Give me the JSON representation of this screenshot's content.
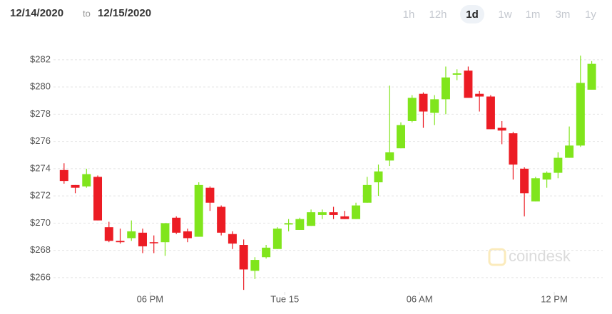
{
  "header": {
    "start_date": "12/14/2020",
    "separator": "to",
    "end_date": "12/15/2020",
    "ranges": [
      "1h",
      "12h",
      "1d",
      "1w",
      "1m",
      "3m",
      "1y"
    ],
    "selected_range": "1d"
  },
  "chart_data": {
    "type": "candlestick",
    "watermark": "coindesk",
    "x": [
      14.17,
      14.67,
      15.17,
      15.67,
      16.17,
      16.67,
      17.17,
      17.67,
      18.17,
      18.67,
      19.17,
      19.67,
      20.17,
      20.67,
      21.17,
      21.67,
      22.17,
      22.67,
      23.17,
      23.67,
      24.17,
      24.67,
      25.17,
      25.67,
      26.17,
      26.67,
      27.17,
      27.67,
      28.17,
      28.67,
      29.17,
      29.67,
      30.17,
      30.67,
      31.17,
      31.67,
      32.17,
      32.67,
      33.17,
      33.67,
      34.17,
      34.67,
      35.17,
      35.67,
      36.17,
      36.67,
      37.17,
      37.67
    ],
    "open": [
      273.9,
      272.8,
      272.7,
      273.4,
      269.7,
      268.7,
      268.9,
      269.3,
      268.6,
      268.6,
      270.4,
      269.4,
      269.0,
      272.6,
      271.2,
      269.2,
      268.4,
      266.5,
      267.5,
      268.1,
      269.9,
      269.5,
      269.8,
      270.6,
      270.8,
      270.5,
      270.3,
      271.5,
      273.0,
      274.6,
      275.5,
      277.5,
      279.5,
      278.1,
      279.1,
      280.9,
      281.2,
      279.5,
      279.3,
      277.0,
      276.6,
      274.0,
      271.6,
      273.2,
      273.7,
      274.8,
      275.7,
      279.8
    ],
    "high": [
      274.4,
      272.8,
      274.0,
      273.5,
      270.1,
      269.6,
      270.2,
      269.6,
      269.1,
      270.0,
      270.5,
      269.6,
      273.0,
      272.7,
      271.3,
      269.4,
      268.8,
      267.5,
      268.4,
      269.7,
      270.3,
      270.4,
      271.0,
      271.0,
      271.2,
      270.9,
      271.5,
      273.4,
      274.3,
      280.1,
      277.4,
      279.4,
      279.6,
      279.4,
      281.5,
      281.3,
      281.5,
      279.7,
      279.4,
      277.5,
      276.7,
      274.1,
      273.4,
      273.8,
      275.2,
      277.1,
      282.3,
      281.9
    ],
    "low": [
      272.9,
      272.2,
      272.6,
      270.2,
      268.6,
      268.5,
      268.7,
      267.8,
      267.8,
      267.6,
      269.2,
      268.6,
      269.0,
      270.9,
      269.1,
      268.1,
      265.1,
      265.9,
      267.4,
      268.1,
      269.4,
      269.5,
      269.8,
      270.3,
      270.3,
      270.3,
      270.3,
      271.5,
      272.0,
      274.2,
      275.5,
      277.4,
      277.0,
      277.2,
      278.0,
      280.5,
      279.2,
      278.2,
      276.9,
      275.8,
      273.2,
      270.5,
      271.6,
      272.6,
      273.3,
      274.8,
      275.6,
      279.8
    ],
    "close": [
      273.1,
      272.6,
      273.6,
      270.2,
      268.7,
      268.6,
      269.4,
      268.3,
      268.55,
      270.0,
      269.3,
      268.9,
      272.8,
      271.5,
      269.3,
      268.5,
      266.6,
      267.3,
      268.2,
      269.6,
      270.0,
      270.3,
      270.8,
      270.8,
      270.6,
      270.3,
      271.3,
      272.8,
      273.8,
      275.2,
      277.2,
      279.2,
      278.2,
      279.1,
      280.7,
      281.0,
      279.2,
      279.3,
      276.9,
      276.8,
      274.3,
      272.2,
      273.3,
      273.7,
      274.8,
      275.7,
      280.3,
      281.7
    ],
    "up_color": "#80e51c",
    "down_color": "#ec1c24",
    "xlim": [
      13.7,
      38.16
    ],
    "xticks": [
      {
        "value": 18,
        "label": "06 PM"
      },
      {
        "value": 24,
        "label": "Tue 15"
      },
      {
        "value": 30,
        "label": "06 AM"
      },
      {
        "value": 36,
        "label": "12 PM"
      }
    ],
    "ylim": [
      264.95,
      283.25
    ],
    "yticks": [
      {
        "value": 266,
        "label": "$266"
      },
      {
        "value": 268,
        "label": "$268"
      },
      {
        "value": 270,
        "label": "$270"
      },
      {
        "value": 272,
        "label": "$272"
      },
      {
        "value": 274,
        "label": "$274"
      },
      {
        "value": 276,
        "label": "$276"
      },
      {
        "value": 278,
        "label": "$278"
      },
      {
        "value": 280,
        "label": "$280"
      },
      {
        "value": 282,
        "label": "$282"
      }
    ],
    "grid": true
  }
}
